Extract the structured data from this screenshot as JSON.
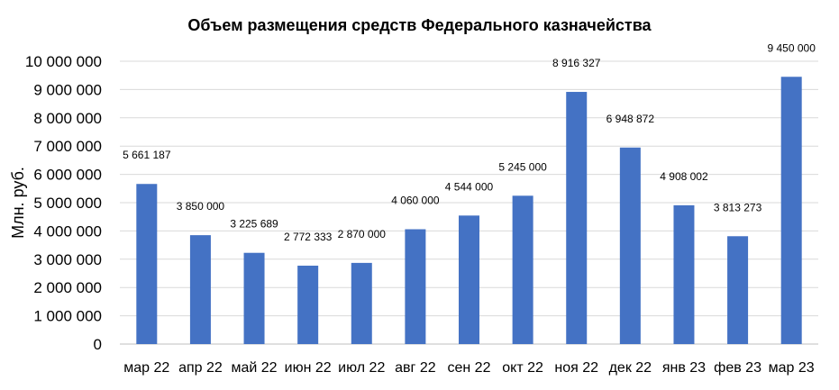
{
  "chart_data": {
    "type": "bar",
    "title": "Объем размещения средств Федерального казначейства",
    "xlabel": "",
    "ylabel": "Млн. руб.",
    "ylim": [
      0,
      10000000
    ],
    "y_ticks": [
      0,
      1000000,
      2000000,
      3000000,
      4000000,
      5000000,
      6000000,
      7000000,
      8000000,
      9000000,
      10000000
    ],
    "y_tick_labels": [
      "0",
      "1 000 000",
      "2 000 000",
      "3 000 000",
      "4 000 000",
      "5 000 000",
      "6 000 000",
      "7 000 000",
      "8 000 000",
      "9 000 000",
      "10 000 000"
    ],
    "categories": [
      "мар 22",
      "апр 22",
      "май 22",
      "июн 22",
      "июл 22",
      "авг 22",
      "сен 22",
      "окт 22",
      "ноя 22",
      "дек 22",
      "янв 23",
      "фев 23",
      "мар 23"
    ],
    "values": [
      5661187,
      3850000,
      3225689,
      2772333,
      2870000,
      4060000,
      4544000,
      5245000,
      8916327,
      6948872,
      4908002,
      3813273,
      9450000
    ],
    "data_labels": [
      "5 661 187",
      "3 850 000",
      "3 225 689",
      "2 772 333",
      "2 870 000",
      "4 060 000",
      "4 544 000",
      "5 245 000",
      "8 916 327",
      "6 948 872",
      "4 908 002",
      "3 813 273",
      "9 450 000"
    ],
    "grid": true,
    "legend": "none",
    "bar_color": "#4472C4",
    "grid_color": "#D9D9D9"
  }
}
